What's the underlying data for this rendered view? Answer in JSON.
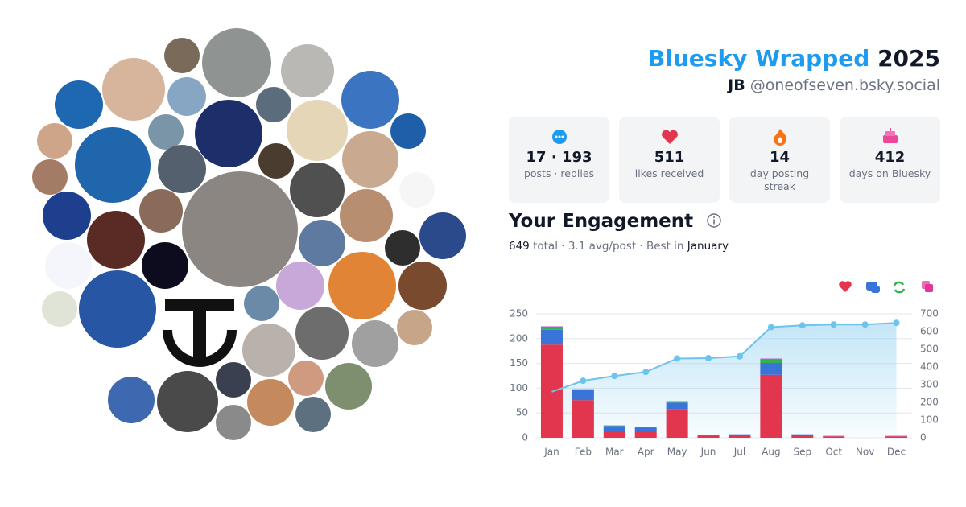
{
  "header": {
    "title_brand": "Bluesky Wrapped",
    "title_year": "2025",
    "name": "JB",
    "handle": "@oneofseven.bsky.social"
  },
  "stats": [
    {
      "value": "17 · 193",
      "label": "posts · replies"
    },
    {
      "value": "511",
      "label": "likes received"
    },
    {
      "value": "14",
      "label": "day posting streak"
    },
    {
      "value": "412",
      "label": "days on Bluesky"
    }
  ],
  "engagement": {
    "title": "Your Engagement",
    "total": "649",
    "mid": "total · 3.1 avg/post · Best in",
    "best": "January"
  },
  "chart_data": {
    "type": "stacked-bar-line",
    "categories": [
      "Jan",
      "Feb",
      "Mar",
      "Apr",
      "May",
      "Jun",
      "Jul",
      "Aug",
      "Sep",
      "Oct",
      "Nov",
      "Dec"
    ],
    "series": [
      {
        "color": "#e2364f",
        "values": [
          188,
          76,
          13,
          13,
          58,
          4,
          6,
          127,
          6,
          3,
          0,
          3
        ]
      },
      {
        "color": "#3b74d8",
        "values": [
          30,
          20,
          11,
          8,
          13,
          1,
          1,
          24,
          1,
          0,
          0,
          0
        ]
      },
      {
        "color": "#2fb24f",
        "values": [
          6,
          2,
          1,
          1,
          2,
          0,
          0,
          8,
          0,
          0,
          0,
          0
        ]
      },
      {
        "color": "#c070d8",
        "values": [
          1,
          0,
          0,
          0,
          1,
          0,
          0,
          1,
          0,
          1,
          0,
          1
        ]
      },
      {
        "color": "#6cc4ec",
        "axis": "y2",
        "values": [
          260,
          322,
          349,
          372,
          448,
          450,
          460,
          625,
          635,
          640,
          640,
          649
        ]
      }
    ],
    "ylim": [
      0,
      250
    ],
    "yticks": [
      0,
      50,
      100,
      150,
      200,
      250
    ],
    "y2lim": [
      0,
      700
    ],
    "y2ticks": [
      0,
      100,
      200,
      300,
      400,
      500,
      600,
      700
    ],
    "grid": true
  }
}
